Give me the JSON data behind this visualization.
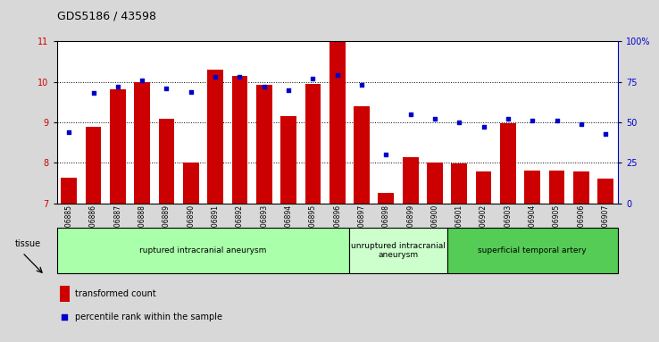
{
  "title": "GDS5186 / 43598",
  "samples": [
    "GSM1306885",
    "GSM1306886",
    "GSM1306887",
    "GSM1306888",
    "GSM1306889",
    "GSM1306890",
    "GSM1306891",
    "GSM1306892",
    "GSM1306893",
    "GSM1306894",
    "GSM1306895",
    "GSM1306896",
    "GSM1306897",
    "GSM1306898",
    "GSM1306899",
    "GSM1306900",
    "GSM1306901",
    "GSM1306902",
    "GSM1306903",
    "GSM1306904",
    "GSM1306905",
    "GSM1306906",
    "GSM1306907"
  ],
  "bar_values": [
    7.63,
    8.88,
    9.82,
    10.0,
    9.1,
    8.02,
    10.3,
    10.15,
    9.92,
    9.15,
    9.95,
    11.0,
    9.4,
    7.25,
    8.15,
    8.02,
    7.98,
    7.78,
    8.98,
    7.82,
    7.82,
    7.8,
    7.62
  ],
  "percentile_values": [
    44,
    68,
    72,
    76,
    71,
    69,
    78,
    78,
    72,
    70,
    77,
    79,
    73,
    30,
    55,
    52,
    50,
    47,
    52,
    51,
    51,
    49,
    43
  ],
  "bar_color": "#cc0000",
  "dot_color": "#0000cc",
  "ylim_left": [
    7,
    11
  ],
  "ylim_right": [
    0,
    100
  ],
  "yticks_left": [
    7,
    8,
    9,
    10,
    11
  ],
  "yticks_right": [
    0,
    25,
    50,
    75,
    100
  ],
  "ytick_labels_right": [
    "0",
    "25",
    "50",
    "75",
    "100%"
  ],
  "groups": [
    {
      "label": "ruptured intracranial aneurysm",
      "start": 0,
      "end": 12,
      "color": "#aaffaa"
    },
    {
      "label": "unruptured intracranial\naneurysm",
      "start": 12,
      "end": 16,
      "color": "#ccffcc"
    },
    {
      "label": "superficial temporal artery",
      "start": 16,
      "end": 23,
      "color": "#55cc55"
    }
  ],
  "group_label_prefix": "tissue",
  "legend_bar_label": "transformed count",
  "legend_dot_label": "percentile rank within the sample",
  "bg_color": "#d8d8d8",
  "plot_bg_color": "#ffffff",
  "grid_color": "#000000",
  "title_fontsize": 9,
  "tick_fontsize": 5.5,
  "label_fontsize": 6.5,
  "bar_bottom": 7.0
}
